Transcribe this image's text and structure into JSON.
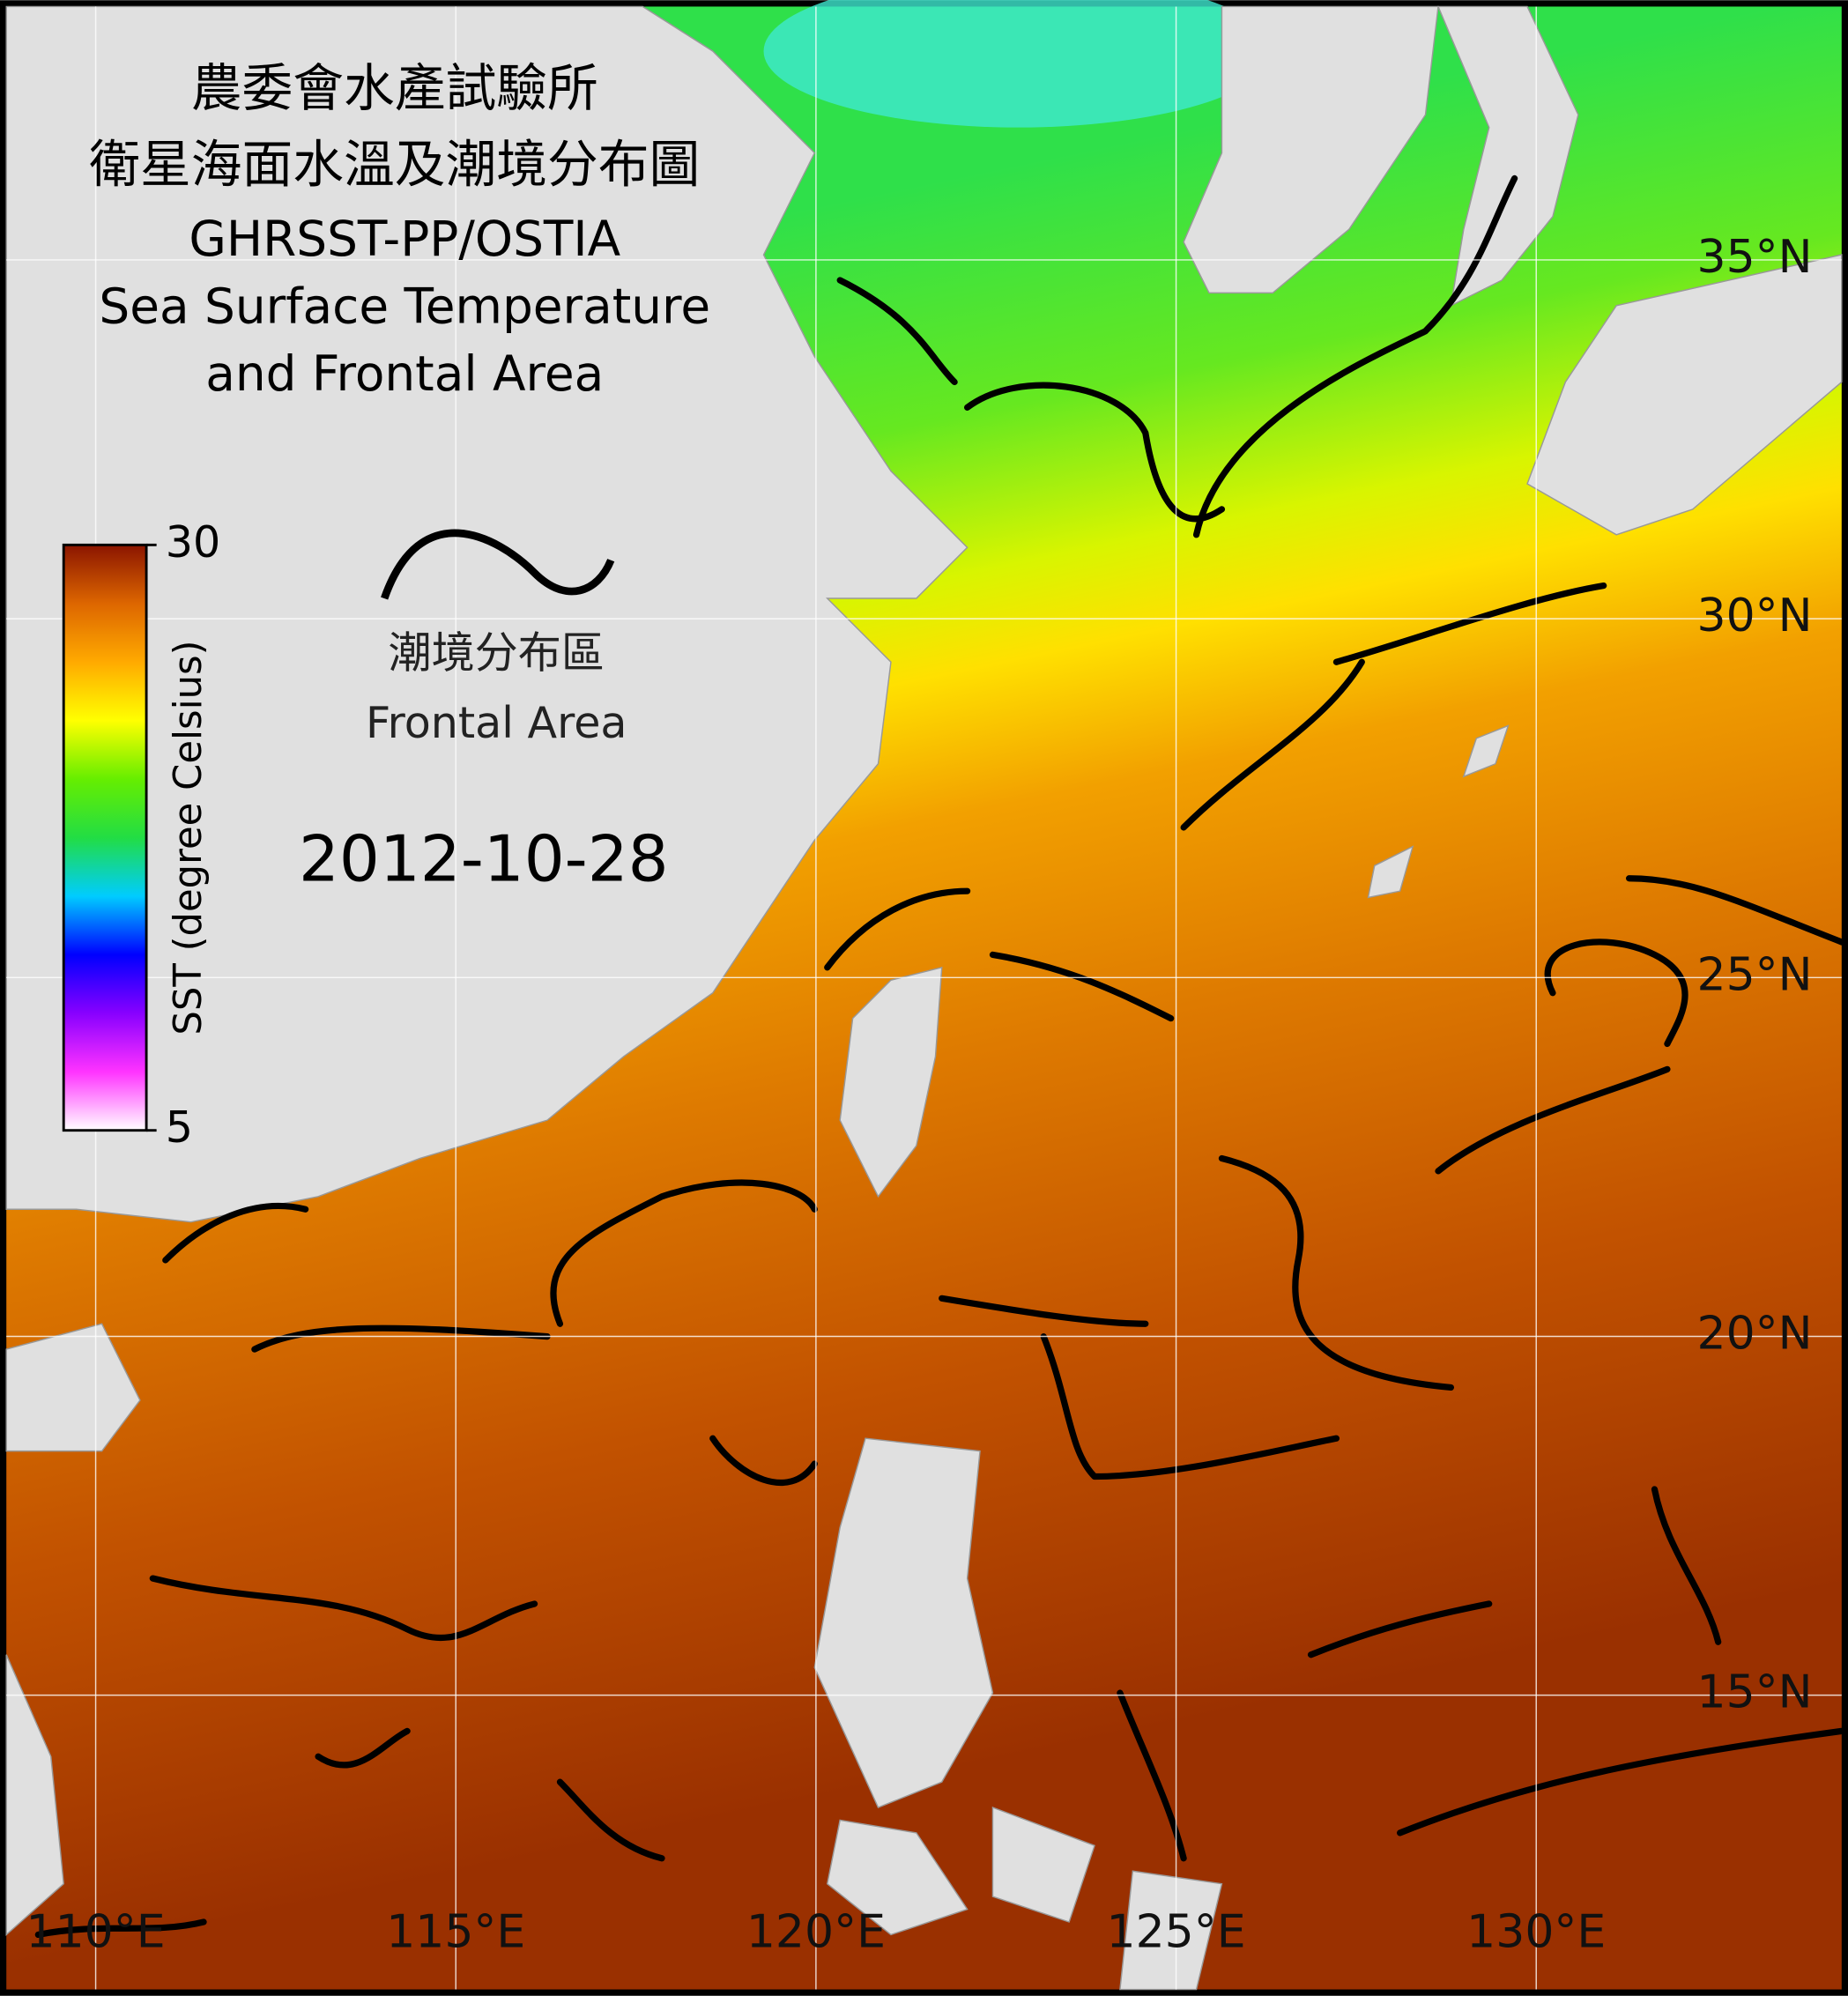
{
  "title_lines": [
    "農委會水產試驗所",
    "衛星海面水溫及潮境分布圖",
    "GHRSST-PP/OSTIA",
    "Sea Surface Temperature",
    "and Frontal Area"
  ],
  "legend": {
    "front_label_zh": "潮境分布區",
    "front_label_en": "Frontal Area"
  },
  "date": "2012-10-28",
  "colorbar": {
    "label": "SST (degree Celsius)",
    "lim": [
      5,
      30
    ],
    "ticks": [
      5,
      30
    ],
    "colors": [
      "#ffffff",
      "#ff33ff",
      "#8800ff",
      "#0000ff",
      "#00ccff",
      "#22dd44",
      "#66ee00",
      "#ffff00",
      "#ffaa00",
      "#dd6600",
      "#8b1500"
    ]
  },
  "map": {
    "xlim": [
      108.76,
      134.24
    ],
    "ylim": [
      10.9,
      38.53
    ],
    "xticks": [
      {
        "value": 110,
        "label": "110°E"
      },
      {
        "value": 115,
        "label": "115°E"
      },
      {
        "value": 120,
        "label": "120°E"
      },
      {
        "value": 125,
        "label": "125°E"
      },
      {
        "value": 130,
        "label": "130°E"
      }
    ],
    "yticks": [
      {
        "value": 15,
        "label": "15°N"
      },
      {
        "value": 20,
        "label": "20°N"
      },
      {
        "value": 25,
        "label": "25°N"
      },
      {
        "value": 30,
        "label": "30°N"
      },
      {
        "value": 35,
        "label": "35°N"
      }
    ]
  }
}
